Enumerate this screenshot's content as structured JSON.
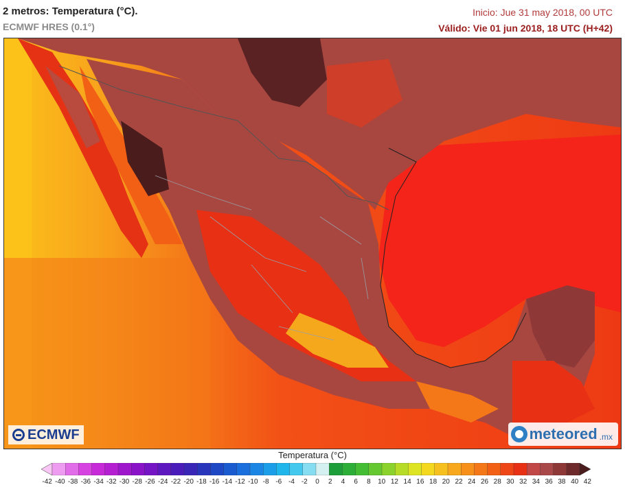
{
  "header": {
    "title": "2 metros: Temperatura (°C).",
    "model": "ECMWF HRES (0.1°)",
    "init": "Inicio: Jue 31 may 2018, 00 UTC",
    "valid": "Válido: Vie 01 jun 2018, 18 UTC (H+42)"
  },
  "logos": {
    "ecmwf": "ECMWF",
    "meteored": "meteored",
    "meteored_suffix": ".mx"
  },
  "legend": {
    "title": "Temperatura (°C)",
    "ticks": [
      "-42",
      "-40",
      "-38",
      "-36",
      "-34",
      "-32",
      "-30",
      "-28",
      "-26",
      "-24",
      "-22",
      "-20",
      "-18",
      "-16",
      "-14",
      "-12",
      "-10",
      "-8",
      "-6",
      "-4",
      "-2",
      "0",
      "2",
      "4",
      "6",
      "8",
      "10",
      "12",
      "14",
      "16",
      "18",
      "20",
      "22",
      "24",
      "26",
      "28",
      "30",
      "32",
      "34",
      "36",
      "38",
      "40",
      "42"
    ],
    "colors": [
      "#f8c6f4",
      "#ee9cf0",
      "#e26de8",
      "#d743e0",
      "#c72ad8",
      "#b51fd2",
      "#9f17cc",
      "#8a13c8",
      "#7414c4",
      "#5e18c0",
      "#4a1dbb",
      "#3a26b6",
      "#2935ba",
      "#1e48c4",
      "#1a5bd0",
      "#1a6fdc",
      "#1c86e4",
      "#1c9ee8",
      "#20b6ec",
      "#44c8ee",
      "#86dcf0",
      "#d4f0f0",
      "#1e9e3a",
      "#2cae38",
      "#44bc34",
      "#66c830",
      "#8cd22c",
      "#b6dc28",
      "#dde424",
      "#f4d820",
      "#f6c01e",
      "#f7a81c",
      "#f6901a",
      "#f47818",
      "#f26016",
      "#ee4616",
      "#e83014",
      "#c24848",
      "#a84848",
      "#8e3838",
      "#6e2a2a",
      "#4a1c1c"
    ]
  }
}
